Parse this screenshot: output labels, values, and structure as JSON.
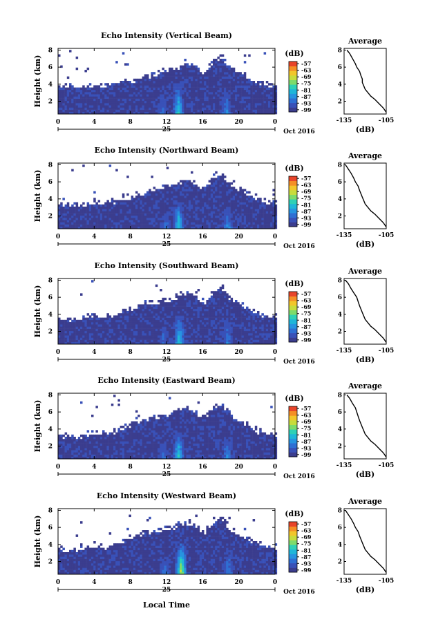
{
  "figure": {
    "xlabel_bottom": "Local Time",
    "date_label": "Oct 2016"
  },
  "chart_data": [
    {
      "type": "heatmap",
      "title": "Echo Intensity (Vertical Beam)",
      "xlabel": "",
      "ylabel": "Height (km)",
      "xlim": [
        0,
        24
      ],
      "ylim": [
        0.5,
        8.2
      ],
      "xticks": [
        "0",
        "4",
        "8",
        "12",
        "16",
        "20",
        "0"
      ],
      "yticks": [
        "2",
        "4",
        "6",
        "8"
      ],
      "day_label": "25",
      "colorbar_unit": "(dB)",
      "colorbar_ticks": [
        "-57",
        "-63",
        "-69",
        "-75",
        "-81",
        "-87",
        "-93",
        "-99"
      ],
      "colorbar_range": [
        -101,
        -55
      ],
      "echo_top_km": [
        4.2,
        4.1,
        4.0,
        4.1,
        4.3,
        4.2,
        4.0,
        4.4,
        4.6,
        5.0,
        5.3,
        5.6,
        5.9,
        6.2,
        6.8,
        6.5,
        5.5,
        7.0,
        7.6,
        6.2,
        5.8,
        5.0,
        4.5,
        4.2,
        4.1
      ],
      "cores": [
        {
          "x": 13.2,
          "top": 4.2,
          "value": -81
        },
        {
          "x": 11.5,
          "top": 2.8,
          "value": -90
        },
        {
          "x": 18.5,
          "top": 3.5,
          "value": -88
        }
      ],
      "avg_profile": {
        "title": "Average",
        "xlabel": "(dB)",
        "xlim": [
          -135,
          -105
        ],
        "xticks": [
          "-135",
          "-105"
        ],
        "ylim": [
          0.5,
          8.2
        ],
        "yticks": [
          "2",
          "4",
          "6",
          "8"
        ],
        "x": [
          -133,
          -131,
          -129,
          -127,
          -126,
          -124,
          -123,
          -122,
          -122,
          -121,
          -120,
          -118,
          -116,
          -113,
          -110,
          -107,
          -105
        ],
        "y": [
          8.0,
          7.6,
          7.0,
          6.4,
          6.0,
          5.5,
          5.0,
          4.6,
          4.2,
          3.8,
          3.4,
          3.0,
          2.6,
          2.2,
          1.7,
          1.2,
          0.7
        ]
      }
    },
    {
      "type": "heatmap",
      "title": "Echo Intensity (Northward Beam)",
      "xlabel": "",
      "ylabel": "Height (km)",
      "xlim": [
        0,
        24
      ],
      "ylim": [
        0.5,
        8.2
      ],
      "xticks": [
        "0",
        "4",
        "8",
        "12",
        "16",
        "20",
        "0"
      ],
      "yticks": [
        "2",
        "4",
        "6",
        "8"
      ],
      "day_label": "25",
      "colorbar_unit": "(dB)",
      "colorbar_ticks": [
        "-57",
        "-63",
        "-69",
        "-75",
        "-81",
        "-87",
        "-93",
        "-99"
      ],
      "colorbar_range": [
        -101,
        -55
      ],
      "echo_top_km": [
        3.8,
        3.6,
        3.5,
        3.7,
        4.0,
        3.8,
        3.9,
        4.3,
        4.5,
        4.8,
        5.2,
        5.5,
        5.7,
        6.0,
        6.6,
        6.2,
        5.3,
        6.8,
        7.2,
        5.9,
        5.4,
        4.8,
        4.3,
        4.0,
        3.9
      ],
      "cores": [
        {
          "x": 13.2,
          "top": 3.9,
          "value": -81
        },
        {
          "x": 11.8,
          "top": 2.5,
          "value": -90
        },
        {
          "x": 18.7,
          "top": 3.2,
          "value": -88
        }
      ],
      "avg_profile": {
        "title": "Average",
        "xlabel": "(dB)",
        "xlim": [
          -135,
          -105
        ],
        "xticks": [
          "-135",
          "-105"
        ],
        "ylim": [
          0.5,
          8.2
        ],
        "yticks": [
          "2",
          "4",
          "6",
          "8"
        ],
        "x": [
          -134,
          -132,
          -130,
          -128,
          -127,
          -125,
          -124,
          -123,
          -122,
          -121,
          -120,
          -118,
          -116,
          -113,
          -110,
          -107,
          -105
        ],
        "y": [
          8.0,
          7.5,
          7.0,
          6.4,
          6.0,
          5.5,
          5.0,
          4.6,
          4.2,
          3.8,
          3.4,
          3.0,
          2.6,
          2.2,
          1.7,
          1.2,
          0.7
        ]
      }
    },
    {
      "type": "heatmap",
      "title": "Echo Intensity (Southward Beam)",
      "xlabel": "",
      "ylabel": "Height (km)",
      "xlim": [
        0,
        24
      ],
      "ylim": [
        0.5,
        8.2
      ],
      "xticks": [
        "0",
        "4",
        "8",
        "12",
        "16",
        "20",
        "0"
      ],
      "yticks": [
        "2",
        "4",
        "6",
        "8"
      ],
      "day_label": "25",
      "colorbar_unit": "(dB)",
      "colorbar_ticks": [
        "-57",
        "-63",
        "-69",
        "-75",
        "-81",
        "-87",
        "-93",
        "-99"
      ],
      "colorbar_range": [
        -101,
        -55
      ],
      "echo_top_km": [
        3.9,
        3.7,
        3.6,
        3.9,
        4.2,
        4.0,
        4.2,
        4.7,
        5.0,
        5.4,
        5.6,
        5.8,
        6.0,
        6.3,
        6.9,
        6.6,
        5.6,
        7.0,
        7.5,
        6.1,
        5.6,
        5.0,
        4.4,
        4.1,
        4.0
      ],
      "cores": [
        {
          "x": 13.3,
          "top": 4.1,
          "value": -81
        },
        {
          "x": 11.6,
          "top": 2.7,
          "value": -90
        },
        {
          "x": 18.6,
          "top": 3.4,
          "value": -88
        }
      ],
      "avg_profile": {
        "title": "Average",
        "xlabel": "(dB)",
        "xlim": [
          -135,
          -105
        ],
        "xticks": [
          "-135",
          "-105"
        ],
        "ylim": [
          0.5,
          8.2
        ],
        "yticks": [
          "2",
          "4",
          "6",
          "8"
        ],
        "x": [
          -134,
          -132,
          -130,
          -128,
          -126,
          -125,
          -124,
          -123,
          -122,
          -121,
          -120,
          -118,
          -116,
          -113,
          -110,
          -107,
          -105
        ],
        "y": [
          8.0,
          7.6,
          7.0,
          6.5,
          6.0,
          5.5,
          5.0,
          4.6,
          4.2,
          3.8,
          3.4,
          3.0,
          2.6,
          2.2,
          1.7,
          1.2,
          0.7
        ]
      }
    },
    {
      "type": "heatmap",
      "title": "Echo Intensity (Eastward Beam)",
      "xlabel": "",
      "ylabel": "Height (km)",
      "xlim": [
        0,
        24
      ],
      "ylim": [
        0.5,
        8.2
      ],
      "xticks": [
        "0",
        "4",
        "8",
        "12",
        "16",
        "20",
        "0"
      ],
      "yticks": [
        "2",
        "4",
        "6",
        "8"
      ],
      "day_label": "25",
      "colorbar_unit": "(dB)",
      "colorbar_ticks": [
        "-57",
        "-63",
        "-69",
        "-75",
        "-81",
        "-87",
        "-93",
        "-99"
      ],
      "colorbar_range": [
        -101,
        -55
      ],
      "echo_top_km": [
        3.5,
        3.4,
        3.3,
        3.6,
        3.9,
        3.7,
        3.9,
        4.5,
        4.8,
        5.3,
        5.6,
        5.8,
        6.0,
        6.2,
        6.7,
        6.4,
        5.5,
        6.9,
        7.3,
        5.8,
        5.2,
        4.6,
        4.0,
        3.8,
        3.7
      ],
      "cores": [
        {
          "x": 13.2,
          "top": 4.0,
          "value": -81
        },
        {
          "x": 11.5,
          "top": 2.6,
          "value": -90
        },
        {
          "x": 18.6,
          "top": 3.3,
          "value": -88
        }
      ],
      "avg_profile": {
        "title": "Average",
        "xlabel": "(dB)",
        "xlim": [
          -135,
          -105
        ],
        "xticks": [
          "-135",
          "-105"
        ],
        "ylim": [
          0.5,
          8.2
        ],
        "yticks": [
          "2",
          "4",
          "6",
          "8"
        ],
        "x": [
          -133,
          -131,
          -129,
          -127,
          -126,
          -125,
          -124,
          -123,
          -122,
          -121,
          -120,
          -118,
          -116,
          -113,
          -110,
          -107,
          -105
        ],
        "y": [
          8.0,
          7.6,
          7.0,
          6.5,
          6.0,
          5.5,
          5.0,
          4.6,
          4.2,
          3.8,
          3.4,
          3.0,
          2.6,
          2.2,
          1.7,
          1.2,
          0.7
        ]
      }
    },
    {
      "type": "heatmap",
      "title": "Echo Intensity (Westward Beam)",
      "xlabel": "Local Time",
      "ylabel": "Height (km)",
      "xlim": [
        0,
        24
      ],
      "ylim": [
        0.5,
        8.2
      ],
      "xticks": [
        "0",
        "4",
        "8",
        "12",
        "16",
        "20",
        "0"
      ],
      "yticks": [
        "2",
        "4",
        "6",
        "8"
      ],
      "day_label": "25",
      "colorbar_unit": "(dB)",
      "colorbar_ticks": [
        "-57",
        "-63",
        "-69",
        "-75",
        "-81",
        "-87",
        "-93",
        "-99"
      ],
      "colorbar_range": [
        -101,
        -55
      ],
      "echo_top_km": [
        3.8,
        3.6,
        3.5,
        3.8,
        4.1,
        3.9,
        4.1,
        4.7,
        5.1,
        5.5,
        5.8,
        6.0,
        6.2,
        6.4,
        6.9,
        6.6,
        5.6,
        7.0,
        7.4,
        6.0,
        5.5,
        4.9,
        4.3,
        4.0,
        3.9
      ],
      "cores": [
        {
          "x": 13.5,
          "top": 4.3,
          "value": -72
        },
        {
          "x": 11.7,
          "top": 2.8,
          "value": -90
        },
        {
          "x": 18.7,
          "top": 3.4,
          "value": -88
        }
      ],
      "avg_profile": {
        "title": "Average",
        "xlabel": "(dB)",
        "xlim": [
          -135,
          -105
        ],
        "xticks": [
          "-135",
          "-105"
        ],
        "ylim": [
          0.5,
          8.2
        ],
        "yticks": [
          "2",
          "4",
          "6",
          "8"
        ],
        "x": [
          -134,
          -132,
          -130,
          -128,
          -127,
          -125,
          -124,
          -123,
          -122,
          -121,
          -120,
          -118,
          -116,
          -113,
          -110,
          -107,
          -105
        ],
        "y": [
          8.0,
          7.5,
          7.0,
          6.4,
          6.0,
          5.5,
          5.0,
          4.6,
          4.2,
          3.8,
          3.4,
          3.0,
          2.6,
          2.2,
          1.7,
          1.2,
          0.7
        ]
      }
    }
  ],
  "colors": {
    "colormap": [
      "#3b3d8e",
      "#3951b8",
      "#2f6fd3",
      "#2794e0",
      "#20b6d8",
      "#2fd0b5",
      "#7ddb6b",
      "#c8dc3c",
      "#f2c62b",
      "#f58f26",
      "#e8452a"
    ],
    "line": "#000000"
  }
}
